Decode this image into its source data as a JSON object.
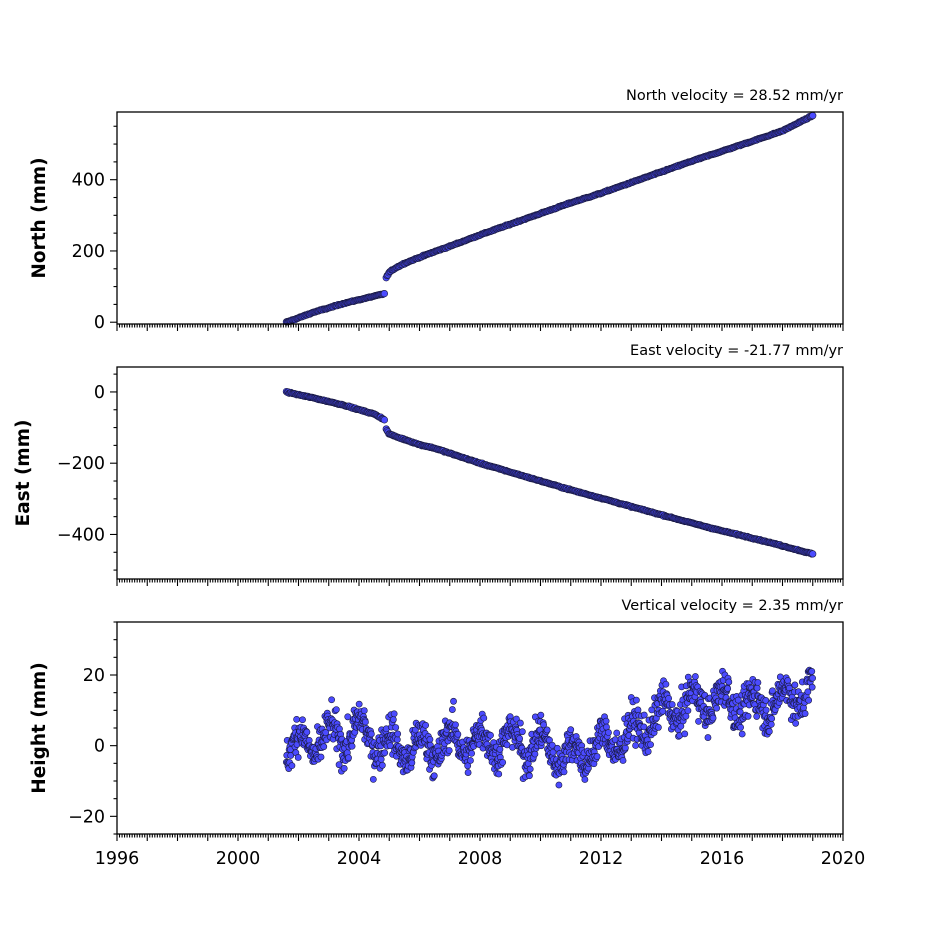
{
  "chart_data": [
    {
      "type": "scatter",
      "title": "North velocity = 28.52 mm/yr",
      "ylabel": "North (mm)",
      "xlim": [
        1996,
        2020
      ],
      "ylim": [
        -5,
        590
      ],
      "yticks": [
        0,
        200,
        400
      ],
      "xtick_labels_shown": false,
      "marker_color": "#4b4bff",
      "series": [
        {
          "x": [
            2001.6,
            2002.0,
            2002.5,
            2003.0,
            2003.5,
            2004.0,
            2004.5,
            2004.85
          ],
          "y": [
            0,
            12,
            28,
            40,
            53,
            63,
            73,
            80
          ]
        },
        {
          "x": [
            2004.9,
            2005.0,
            2005.2,
            2005.5,
            2006.0,
            2006.5,
            2007.0,
            2008.0,
            2009.0,
            2010.0,
            2011.0,
            2012.0,
            2013.0,
            2014.0,
            2015.0,
            2016.0,
            2017.0,
            2018.0,
            2019.0
          ],
          "y": [
            125,
            140,
            152,
            165,
            182,
            198,
            213,
            245,
            275,
            305,
            335,
            362,
            392,
            422,
            452,
            480,
            508,
            537,
            580
          ]
        }
      ]
    },
    {
      "type": "scatter",
      "title": "East velocity = -21.77 mm/yr",
      "ylabel": "East (mm)",
      "xlim": [
        1996,
        2020
      ],
      "ylim": [
        -525,
        70
      ],
      "yticks": [
        0,
        -200,
        -400
      ],
      "xtick_labels_shown": false,
      "marker_color": "#4b4bff",
      "series": [
        {
          "x": [
            2001.6,
            2002.0,
            2002.5,
            2003.0,
            2003.5,
            2004.0,
            2004.5,
            2004.85
          ],
          "y": [
            0,
            -8,
            -17,
            -27,
            -37,
            -50,
            -62,
            -78
          ]
        },
        {
          "x": [
            2004.9,
            2005.0,
            2005.3,
            2005.6,
            2006.0,
            2006.5,
            2007.0,
            2008.0,
            2009.0,
            2010.0,
            2011.0,
            2012.0,
            2013.0,
            2014.0,
            2015.0,
            2016.0,
            2017.0,
            2018.0,
            2019.0
          ],
          "y": [
            -105,
            -118,
            -128,
            -136,
            -148,
            -158,
            -172,
            -200,
            -225,
            -250,
            -275,
            -298,
            -322,
            -345,
            -368,
            -390,
            -410,
            -432,
            -455
          ]
        }
      ]
    },
    {
      "type": "scatter",
      "title": "Vertical velocity = 2.35 mm/yr",
      "ylabel": "Height (mm)",
      "xlim": [
        1996,
        2020
      ],
      "ylim": [
        -25,
        35
      ],
      "yticks": [
        20,
        0,
        -20
      ],
      "xticks": [
        1996,
        2000,
        2004,
        2008,
        2012,
        2016,
        2020
      ],
      "xtick_labels": [
        "1996",
        "2000",
        "2004",
        "2008",
        "2012",
        "2016",
        "2020"
      ],
      "marker_color": "#4b4bff",
      "series": [
        {
          "x": [
            2001.6,
            2002.0,
            2003.0,
            2004.0,
            2005.0,
            2006.0,
            2007.0,
            2008.0,
            2009.0,
            2010.0,
            2011.0,
            2012.0,
            2013.0,
            2014.0,
            2015.0,
            2016.0,
            2017.0,
            2018.0,
            2019.0
          ],
          "y": [
            0,
            0,
            2,
            4,
            0,
            -1,
            1,
            1,
            1,
            0,
            -3,
            0,
            3,
            9,
            12,
            13,
            11,
            13,
            16
          ]
        }
      ]
    }
  ]
}
